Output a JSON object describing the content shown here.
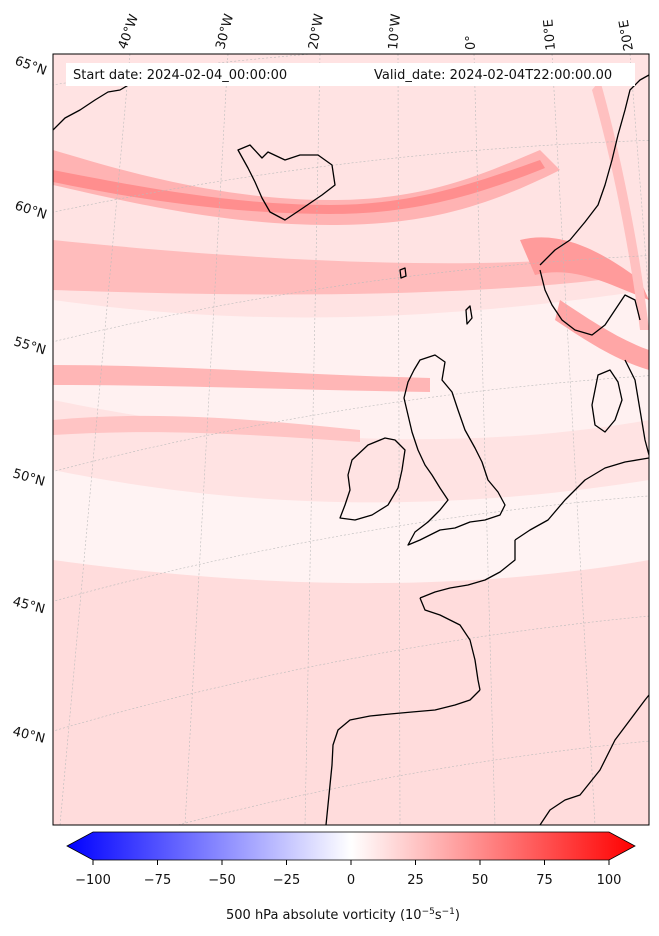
{
  "header": {
    "start_label": "Start date: 2024-02-04_00:00:00",
    "valid_label": "Valid_date: 2024-02-04T22:00:00.00"
  },
  "map": {
    "projection": "conic (lambert)",
    "region": "North Atlantic / Western Europe",
    "lon_labels": [
      "40°W",
      "30°W",
      "20°W",
      "10°W",
      "0°",
      "10°E",
      "20°E"
    ],
    "lat_labels": [
      "65°N",
      "60°N",
      "55°N",
      "50°N",
      "45°N",
      "40°N"
    ],
    "field": "500 hPa absolute vorticity",
    "palette": {
      "negative": "#0000ff",
      "neutral": "#ffffff",
      "positive": "#ff0000",
      "coast": "#000000",
      "grid": "#bbbbbb"
    }
  },
  "colorbar": {
    "ticks": [
      "−100",
      "−75",
      "−50",
      "−25",
      "0",
      "25",
      "50",
      "75",
      "100"
    ],
    "range": [
      -100,
      100
    ],
    "extend": "both",
    "label_main": "500 hPa absolute vorticity (10",
    "label_exp1": "−5",
    "label_mid": "s",
    "label_exp2": "−1",
    "label_end": ")"
  }
}
